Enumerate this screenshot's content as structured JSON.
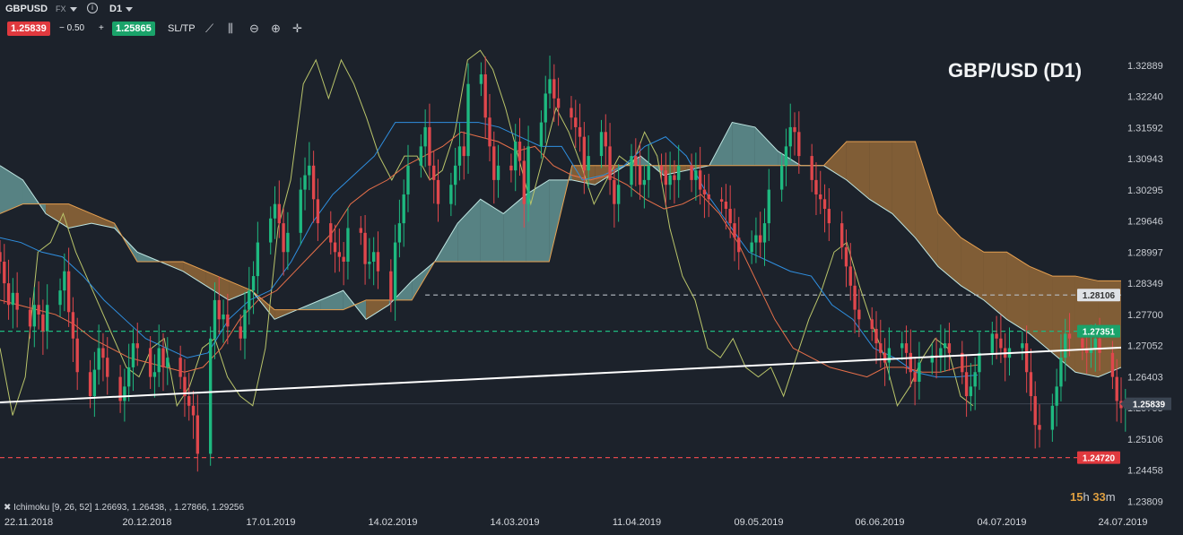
{
  "toolbar": {
    "symbol": "GBPUSD",
    "market": "FX",
    "timeframe": "D1",
    "info_icon": "info-icon",
    "bid": "1.25839",
    "spread": "− 0.50",
    "plus": "+",
    "ask": "1.25865",
    "sltp": "SL/TP",
    "tools": [
      "line-chart-icon",
      "candles-icon",
      "zoom-out-icon",
      "zoom-in-icon",
      "crosshair-move-icon"
    ]
  },
  "title": "GBP/USD  (D1)",
  "timer": {
    "hours": "15",
    "h_unit": "h",
    "minutes": "33",
    "m_unit": "m"
  },
  "indicator_legend": "✖ Ichimoku [9, 26, 52] 1.26693, 1.26438, , 1.27866, 1.29256",
  "colors": {
    "background": "#1c222b",
    "bull": "#1eb980",
    "bear": "#e0474c",
    "tenkan": "#e8704a",
    "kijun": "#2f8fe0",
    "chikou": "#b9c46a",
    "kumo_bull": "#6fa7a5",
    "kumo_bear": "#a8743a",
    "trendline": "#ffffff"
  },
  "chart_data": {
    "type": "candlestick",
    "symbol": "GBPUSD",
    "timeframe": "D1",
    "x_ticks": [
      "22.11.2018",
      "20.12.2018",
      "17.01.2019",
      "14.02.2019",
      "14.03.2019",
      "11.04.2019",
      "09.05.2019",
      "06.06.2019",
      "04.07.2019",
      "24.07.2019"
    ],
    "x_range": [
      "2018-11-05",
      "2019-07-24"
    ],
    "y_ticks": [
      "1.32889",
      "1.32240",
      "1.31592",
      "1.30943",
      "1.30295",
      "1.29646",
      "1.28997",
      "1.28349",
      "1.27700",
      "1.27052",
      "1.26403",
      "1.25755",
      "1.25106",
      "1.24458",
      "1.23809"
    ],
    "ylim": [
      1.2365,
      1.3339
    ],
    "price_labels": [
      {
        "value": "1.28106",
        "style": "label-grey"
      },
      {
        "value": "1.27351",
        "style": "label-green"
      },
      {
        "value": "1.25839",
        "style": "label-current"
      },
      {
        "value": "1.24720",
        "style": "label-red"
      }
    ],
    "horizontal_lines": [
      {
        "value": 1.28106,
        "color": "#b7bdc4",
        "dash": true,
        "from": "2019-02-12"
      },
      {
        "value": 1.27351,
        "color": "#1eb980",
        "dash": true,
        "from": "2018-11-05"
      },
      {
        "value": 1.25839,
        "color": "#3b4552",
        "dash": false,
        "from": "2018-11-05"
      },
      {
        "value": 1.2472,
        "color": "#e0474c",
        "dash": true,
        "from": "2018-11-05"
      }
    ],
    "trendline": {
      "from": [
        "2018-11-05",
        1.2587
      ],
      "to": [
        "2019-07-24",
        1.2701
      ]
    },
    "series": [
      {
        "name": "close",
        "values": [
          1.288,
          1.2835,
          1.279,
          1.2815,
          1.278,
          1.2745,
          1.279,
          1.277,
          1.2735,
          1.279,
          1.282,
          1.286,
          1.2775,
          1.272,
          1.265,
          1.26,
          1.2655,
          1.27,
          1.268,
          1.264,
          1.259,
          1.262,
          1.266,
          1.271,
          1.27,
          1.264,
          1.265,
          1.27,
          1.266,
          1.268,
          1.264,
          1.26,
          1.258,
          1.256,
          1.248,
          1.272,
          1.28,
          1.276,
          1.277,
          1.2745,
          1.272,
          1.278,
          1.282,
          1.285,
          1.292,
          1.297,
          1.3,
          1.296,
          1.29,
          1.294,
          1.303,
          1.306,
          1.308,
          1.301,
          1.296,
          1.292,
          1.29,
          1.289,
          1.288,
          1.295,
          1.294,
          1.2875,
          1.288,
          1.29,
          1.286,
          1.28,
          1.292,
          1.296,
          1.302,
          1.308,
          1.312,
          1.316,
          1.308,
          1.305,
          1.3,
          1.304,
          1.308,
          1.312,
          1.31,
          1.325,
          1.327,
          1.318,
          1.312,
          1.305,
          1.308,
          1.307,
          1.313,
          1.309,
          1.3,
          1.312,
          1.317,
          1.323,
          1.326,
          1.322,
          1.32,
          1.318,
          1.316,
          1.314,
          1.307,
          1.31,
          1.315,
          1.312,
          1.305,
          1.3,
          1.304,
          1.31,
          1.308,
          1.304,
          1.305,
          1.308,
          1.307,
          1.304,
          1.306,
          1.305,
          1.308,
          1.305,
          1.307,
          1.303,
          1.302,
          1.301,
          1.3005,
          1.299,
          1.296,
          1.293,
          1.29,
          1.292,
          1.2935,
          1.292,
          1.296,
          1.303,
          1.308,
          1.312,
          1.316,
          1.315,
          1.31,
          1.305,
          1.302,
          1.301,
          1.299,
          1.296,
          1.291,
          1.287,
          1.283,
          1.278,
          1.276,
          1.274,
          1.271,
          1.269,
          1.267,
          1.27,
          1.271,
          1.269,
          1.265,
          1.263,
          1.267,
          1.2685,
          1.268,
          1.27,
          1.271,
          1.269,
          1.265,
          1.26,
          1.262,
          1.265,
          1.269,
          1.273,
          1.272,
          1.27,
          1.268,
          1.27,
          1.271,
          1.265,
          1.26,
          1.254,
          1.253,
          1.258,
          1.262,
          1.268,
          1.273,
          1.272,
          1.27,
          1.269,
          1.27,
          1.272,
          1.269,
          1.264,
          1.259,
          1.2575,
          1.2584
        ]
      },
      {
        "name": "tenkan",
        "values": [
          1.28,
          1.279,
          1.278,
          1.277,
          1.275,
          1.272,
          1.27,
          1.268,
          1.267,
          1.266,
          1.265,
          1.266,
          1.27,
          1.276,
          1.28,
          1.282,
          1.286,
          1.29,
          1.294,
          1.3,
          1.303,
          1.305,
          1.308,
          1.31,
          1.312,
          1.315,
          1.314,
          1.313,
          1.311,
          1.312,
          1.308,
          1.306,
          1.305,
          1.306,
          1.304,
          1.301,
          1.299,
          1.3,
          1.302,
          1.298,
          1.292,
          1.284,
          1.276,
          1.27,
          1.268,
          1.266,
          1.265,
          1.264,
          1.266,
          1.266,
          1.265,
          1.265,
          1.266,
          1.2665
        ]
      },
      {
        "name": "kijun",
        "values": [
          1.293,
          1.292,
          1.29,
          1.289,
          1.285,
          1.28,
          1.276,
          1.272,
          1.27,
          1.268,
          1.269,
          1.276,
          1.28,
          1.282,
          1.288,
          1.296,
          1.302,
          1.306,
          1.31,
          1.317,
          1.317,
          1.317,
          1.317,
          1.317,
          1.316,
          1.314,
          1.312,
          1.312,
          1.305,
          1.306,
          1.308,
          1.312,
          1.314,
          1.31,
          1.302,
          1.296,
          1.29,
          1.288,
          1.286,
          1.285,
          1.279,
          1.276,
          1.27,
          1.268,
          1.265,
          1.264,
          1.264,
          1.2644
        ]
      },
      {
        "name": "chikou",
        "values": [
          1.27,
          1.256,
          1.264,
          1.29,
          1.292,
          1.298,
          1.29,
          1.284,
          1.278,
          1.272,
          1.266,
          1.264,
          1.27,
          1.272,
          1.258,
          1.262,
          1.27,
          1.272,
          1.264,
          1.26,
          1.258,
          1.27,
          1.295,
          1.305,
          1.325,
          1.33,
          1.322,
          1.33,
          1.325,
          1.318,
          1.31,
          1.305,
          1.31,
          1.31,
          1.305,
          1.307,
          1.315,
          1.33,
          1.332,
          1.328,
          1.32,
          1.31,
          1.3,
          1.31,
          1.32,
          1.315,
          1.308,
          1.3,
          1.305,
          1.31,
          1.308,
          1.315,
          1.31,
          1.295,
          1.285,
          1.28,
          1.27,
          1.268,
          1.272,
          1.266,
          1.264,
          1.266,
          1.26,
          1.268,
          1.276,
          1.282,
          1.29,
          1.292,
          1.283,
          1.275,
          1.268,
          1.258,
          1.262,
          1.268,
          1.272,
          1.27,
          1.26,
          1.258
        ]
      },
      {
        "name": "kumo_a",
        "values": [
          1.308,
          1.305,
          1.298,
          1.295,
          1.296,
          1.295,
          1.29,
          1.288,
          1.286,
          1.283,
          1.28,
          1.282,
          1.276,
          1.278,
          1.28,
          1.282,
          1.276,
          1.279,
          1.284,
          1.288,
          1.296,
          1.301,
          1.298,
          1.302,
          1.305,
          1.305,
          1.304,
          1.307,
          1.31,
          1.306,
          1.307,
          1.308,
          1.317,
          1.316,
          1.311,
          1.308,
          1.308,
          1.305,
          1.301,
          1.298,
          1.293,
          1.287,
          1.283,
          1.28,
          1.276,
          1.273,
          1.269,
          1.265,
          1.264,
          1.266
        ]
      },
      {
        "name": "kumo_b",
        "values": [
          1.298,
          1.3,
          1.3,
          1.3,
          1.298,
          1.296,
          1.288,
          1.288,
          1.288,
          1.286,
          1.284,
          1.282,
          1.278,
          1.278,
          1.278,
          1.278,
          1.28,
          1.28,
          1.28,
          1.288,
          1.288,
          1.288,
          1.288,
          1.288,
          1.288,
          1.308,
          1.308,
          1.308,
          1.308,
          1.308,
          1.308,
          1.308,
          1.308,
          1.308,
          1.308,
          1.308,
          1.308,
          1.313,
          1.313,
          1.313,
          1.313,
          1.298,
          1.293,
          1.29,
          1.29,
          1.287,
          1.285,
          1.285,
          1.284,
          1.284
        ]
      }
    ]
  }
}
